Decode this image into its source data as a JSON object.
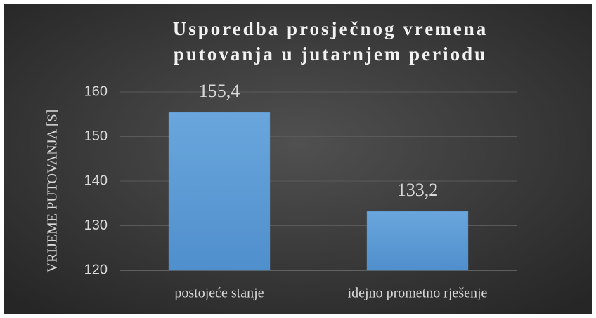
{
  "chart_data": {
    "type": "bar",
    "title": [
      "Usporedba prosječnog  vremena",
      "putovanja u jutarnjem periodu"
    ],
    "y_label": "VRIJEME PUTOVANJA [S]",
    "categories": [
      "postojeće stanje",
      "idejno prometno rješenje"
    ],
    "values": [
      155.4,
      133.2
    ],
    "value_labels": [
      "155,4",
      "133,2"
    ],
    "color": "#5b9bd5",
    "ylim": [
      120,
      160
    ],
    "yticks": [
      120,
      130,
      140,
      150,
      160
    ],
    "grid": true
  }
}
